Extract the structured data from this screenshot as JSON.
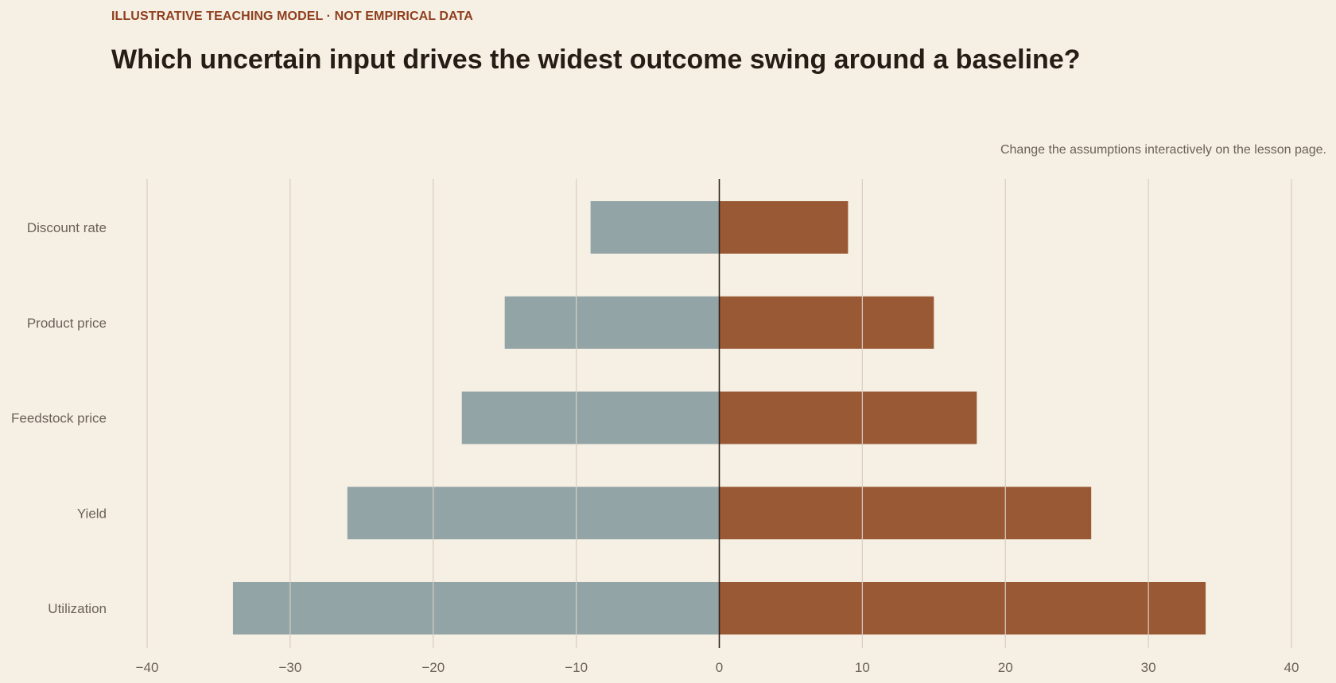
{
  "header": {
    "eyebrow": "ILLUSTRATIVE TEACHING MODEL · NOT EMPIRICAL DATA",
    "title": "Which uncertain input drives the widest outcome swing around a baseline?",
    "note": "Change the assumptions interactively on the lesson page."
  },
  "colors": {
    "background": "#f5efe4",
    "low": "#93a4a7",
    "high": "#9a5935",
    "gridline": "#d9cec2",
    "baseline": "#2a211b",
    "eyebrow": "#8f3f1d",
    "title": "#261d16",
    "label": "#6b625a"
  },
  "chart_data": {
    "type": "bar",
    "orientation": "horizontal",
    "variant": "tornado",
    "categories": [
      "Discount rate",
      "Product price",
      "Feedstock price",
      "Yield",
      "Utilization"
    ],
    "series": [
      {
        "values": [
          -9,
          -15,
          -18,
          -26,
          -34
        ]
      },
      {
        "values": [
          9,
          15,
          18,
          26,
          34
        ]
      }
    ],
    "xlim": [
      -40,
      40
    ],
    "xticks": [
      -40,
      -30,
      -20,
      -10,
      0,
      10,
      20,
      30,
      40
    ],
    "xtick_labels": [
      "−40",
      "−30",
      "−20",
      "−10",
      "0",
      "10",
      "20",
      "30",
      "40"
    ],
    "baseline": 0,
    "grid": "vertical",
    "title": "",
    "xlabel": "",
    "ylabel": ""
  }
}
